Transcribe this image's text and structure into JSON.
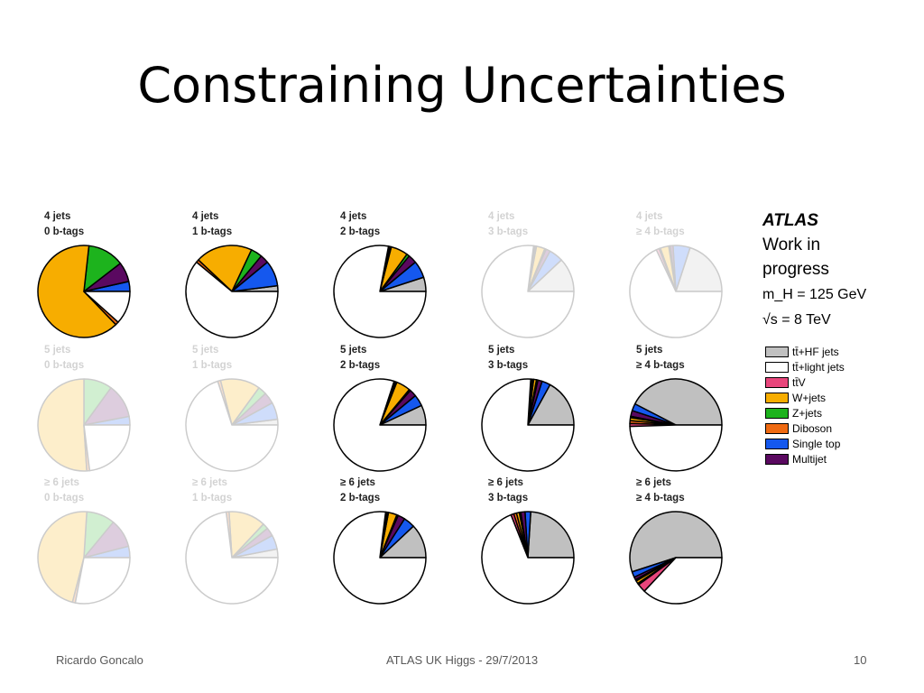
{
  "title": "Constraining Uncertainties",
  "footer": {
    "left": "Ricardo Goncalo",
    "center": "ATLAS UK Higgs - 29/7/2013",
    "right": "10"
  },
  "atlas": {
    "experiment": "ATLAS",
    "status_line1": "Work in",
    "status_line2": "progress",
    "mass": "m_H = 125 GeV",
    "energy": "√s = 8 TeV"
  },
  "colors": {
    "ttHF": "#c0c0c0",
    "ttlight": "#ffffff",
    "ttV": "#e8457b",
    "Wjets": "#f7ad00",
    "Zjets": "#1db31d",
    "Diboson": "#ef6a12",
    "Singletop": "#1558ee",
    "Multijet": "#5a0960"
  },
  "chart_data": {
    "type": "pie",
    "legend": [
      {
        "key": "ttHF",
        "label": "tt̄+HF jets"
      },
      {
        "key": "ttlight",
        "label": "tt̄+light jets"
      },
      {
        "key": "ttV",
        "label": "tt̄V"
      },
      {
        "key": "Wjets",
        "label": "W+jets"
      },
      {
        "key": "Zjets",
        "label": "Z+jets"
      },
      {
        "key": "Diboson",
        "label": "Diboson"
      },
      {
        "key": "Singletop",
        "label": "Single top"
      },
      {
        "key": "Multijet",
        "label": "Multijet"
      }
    ],
    "pies": [
      {
        "jets": "4 jets",
        "btags": "0 b-tags",
        "highlighted": true,
        "fractions": {
          "ttHF": 0.0,
          "ttlight": 0.1,
          "ttV": 0.0,
          "Wjets": 0.55,
          "Zjets": 0.11,
          "Diboson": 0.01,
          "Singletop": 0.03,
          "Multijet": 0.06
        }
      },
      {
        "jets": "4 jets",
        "btags": "1 b-tags",
        "highlighted": true,
        "fractions": {
          "ttHF": 0.02,
          "ttlight": 0.61,
          "ttV": 0.0,
          "Wjets": 0.2,
          "Zjets": 0.04,
          "Diboson": 0.01,
          "Singletop": 0.09,
          "Multijet": 0.03
        }
      },
      {
        "jets": "4 jets",
        "btags": "2 b-tags",
        "highlighted": true,
        "fractions": {
          "ttHF": 0.05,
          "ttlight": 0.78,
          "ttV": 0.005,
          "Wjets": 0.06,
          "Zjets": 0.01,
          "Diboson": 0.005,
          "Singletop": 0.06,
          "Multijet": 0.03
        }
      },
      {
        "jets": "4 jets",
        "btags": "3 b-tags",
        "highlighted": false,
        "fractions": {
          "ttHF": 0.12,
          "ttlight": 0.77,
          "ttV": 0.005,
          "Wjets": 0.03,
          "Zjets": 0.005,
          "Diboson": 0.005,
          "Singletop": 0.05,
          "Multijet": 0.015
        }
      },
      {
        "jets": "4 jets",
        "btags": "≥ 4 b-tags",
        "highlighted": false,
        "fractions": {
          "ttHF": 0.2,
          "ttlight": 0.68,
          "ttV": 0.01,
          "Wjets": 0.03,
          "Zjets": 0.005,
          "Diboson": 0.005,
          "Singletop": 0.06,
          "Multijet": 0.01
        }
      },
      {
        "jets": "5 jets",
        "btags": "0 b-tags",
        "highlighted": false,
        "fractions": {
          "ttHF": 0.0,
          "ttlight": 0.23,
          "ttV": 0.0,
          "Wjets": 0.51,
          "Zjets": 0.1,
          "Diboson": 0.01,
          "Singletop": 0.03,
          "Multijet": 0.12
        }
      },
      {
        "jets": "5 jets",
        "btags": "1 b-tags",
        "highlighted": false,
        "fractions": {
          "ttHF": 0.02,
          "ttlight": 0.7,
          "ttV": 0.0,
          "Wjets": 0.14,
          "Zjets": 0.03,
          "Diboson": 0.01,
          "Singletop": 0.06,
          "Multijet": 0.04
        }
      },
      {
        "jets": "5 jets",
        "btags": "2 b-tags",
        "highlighted": true,
        "fractions": {
          "ttHF": 0.07,
          "ttlight": 0.8,
          "ttV": 0.005,
          "Wjets": 0.05,
          "Zjets": 0.005,
          "Diboson": 0.005,
          "Singletop": 0.04,
          "Multijet": 0.025
        }
      },
      {
        "jets": "5 jets",
        "btags": "3 b-tags",
        "highlighted": true,
        "fractions": {
          "ttHF": 0.17,
          "ttlight": 0.76,
          "ttV": 0.005,
          "Wjets": 0.01,
          "Zjets": 0.005,
          "Diboson": 0.005,
          "Singletop": 0.03,
          "Multijet": 0.015
        }
      },
      {
        "jets": "5 jets",
        "btags": "≥ 4 b-tags",
        "highlighted": true,
        "fractions": {
          "ttHF": 0.42,
          "ttlight": 0.49,
          "ttV": 0.01,
          "Wjets": 0.01,
          "Zjets": 0.005,
          "Diboson": 0.01,
          "Singletop": 0.025,
          "Multijet": 0.02
        }
      },
      {
        "jets": "≥ 6 jets",
        "btags": "0 b-tags",
        "highlighted": false,
        "fractions": {
          "ttHF": 0.0,
          "ttlight": 0.28,
          "ttV": 0.0,
          "Wjets": 0.47,
          "Zjets": 0.1,
          "Diboson": 0.01,
          "Singletop": 0.04,
          "Multijet": 0.1
        }
      },
      {
        "jets": "≥ 6 jets",
        "btags": "1 b-tags",
        "highlighted": false,
        "fractions": {
          "ttHF": 0.03,
          "ttlight": 0.73,
          "ttV": 0.0,
          "Wjets": 0.13,
          "Zjets": 0.02,
          "Diboson": 0.01,
          "Singletop": 0.05,
          "Multijet": 0.03
        }
      },
      {
        "jets": "≥ 6 jets",
        "btags": "2 b-tags",
        "highlighted": true,
        "fractions": {
          "ttHF": 0.12,
          "ttlight": 0.77,
          "ttV": 0.005,
          "Wjets": 0.03,
          "Zjets": 0.005,
          "Diboson": 0.005,
          "Singletop": 0.04,
          "Multijet": 0.025
        }
      },
      {
        "jets": "≥ 6 jets",
        "btags": "3 b-tags",
        "highlighted": true,
        "fractions": {
          "ttHF": 0.24,
          "ttlight": 0.69,
          "ttV": 0.01,
          "Wjets": 0.01,
          "Zjets": 0.005,
          "Diboson": 0.01,
          "Singletop": 0.02,
          "Multijet": 0.015
        }
      },
      {
        "jets": "≥ 6 jets",
        "btags": "≥ 4 b-tags",
        "highlighted": true,
        "fractions": {
          "ttHF": 0.55,
          "ttlight": 0.37,
          "ttV": 0.03,
          "Wjets": 0.01,
          "Zjets": 0.005,
          "Diboson": 0.005,
          "Singletop": 0.02,
          "Multijet": 0.01
        }
      }
    ]
  }
}
